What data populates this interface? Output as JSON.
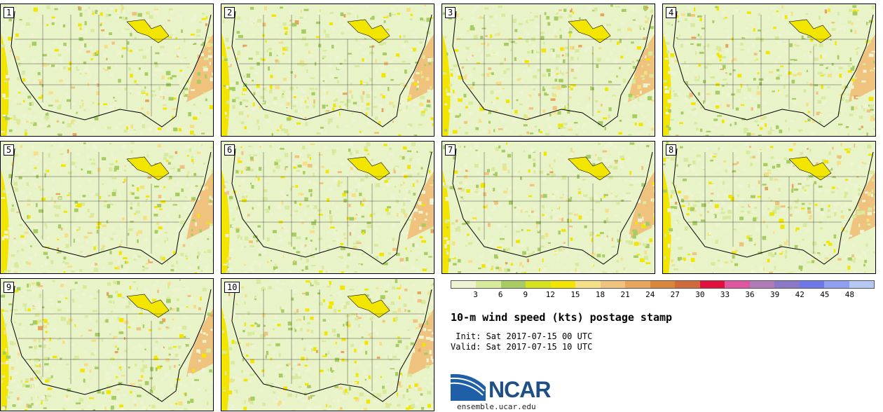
{
  "panels": [
    {
      "label": "1"
    },
    {
      "label": "2"
    },
    {
      "label": "3"
    },
    {
      "label": "4"
    },
    {
      "label": "5"
    },
    {
      "label": "6"
    },
    {
      "label": "7"
    },
    {
      "label": "8"
    },
    {
      "label": "9"
    },
    {
      "label": "10"
    }
  ],
  "colorbar": {
    "colors": [
      "#eef4d2",
      "#d8ea9c",
      "#a7cc62",
      "#d6e21b",
      "#f2e600",
      "#f6df86",
      "#efc37e",
      "#e6a45c",
      "#d9863a",
      "#d06a3a",
      "#e2103e",
      "#e055a0",
      "#b07ab8",
      "#8b79c8",
      "#6e78e8",
      "#8f9ff0",
      "#b5c8f3"
    ],
    "ticks": [
      "3",
      "6",
      "9",
      "12",
      "15",
      "18",
      "21",
      "24",
      "27",
      "30",
      "33",
      "36",
      "39",
      "42",
      "45",
      "48"
    ]
  },
  "title": "10-m wind speed (kts) postage stamp",
  "init": " Init: Sat 2017-07-15 00 UTC",
  "valid": "Valid: Sat 2017-07-15 10 UTC",
  "logo": {
    "text": "NCAR",
    "url": "ensemble.ucar.edu"
  }
}
